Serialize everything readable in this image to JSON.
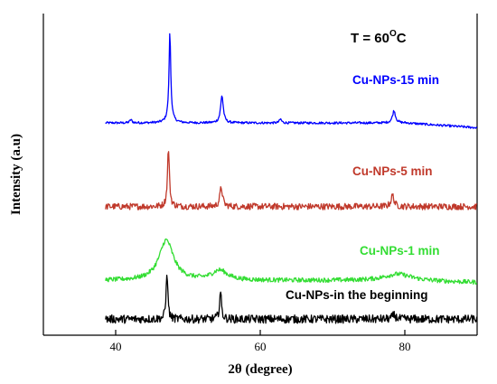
{
  "chart_data": {
    "type": "line",
    "title": "",
    "xlabel": "2θ (degree)",
    "ylabel": "Intensity (a.u)",
    "xlim": [
      30,
      90
    ],
    "ylim": [
      0,
      100
    ],
    "x_ticks": [
      "40",
      "60",
      "80"
    ],
    "x_tick_values": [
      40,
      60,
      80
    ],
    "y_ticks_shown": false,
    "grid": false,
    "annotation": "T = 60°C",
    "annotation_parts": {
      "main": "T = 60",
      "sup": "O",
      "tail": "C"
    },
    "series": [
      {
        "name": "Cu-NPs-15 min",
        "color": "#0000FF",
        "baseline": 66,
        "x_start": 38.6,
        "x_end": 90,
        "tail_drop": 1.5,
        "noise": 0.35,
        "peaks": [
          {
            "x": 42.1,
            "height": 1.0,
            "width": 0.18
          },
          {
            "x": 47.5,
            "height": 2.0,
            "width": 0.45
          },
          {
            "x": 47.5,
            "height": 26.0,
            "width": 0.14
          },
          {
            "x": 54.7,
            "height": 8.5,
            "width": 0.22
          },
          {
            "x": 62.8,
            "height": 1.2,
            "width": 0.18
          },
          {
            "x": 78.5,
            "height": 3.8,
            "width": 0.25
          }
        ]
      },
      {
        "name": "Cu-NPs-5 min",
        "color": "#C0392B",
        "baseline": 40,
        "x_start": 38.6,
        "x_end": 90,
        "tail_drop": 0,
        "noise": 1.0,
        "peaks": [
          {
            "x": 47.3,
            "height": 18.0,
            "width": 0.16
          },
          {
            "x": 54.6,
            "height": 6.0,
            "width": 0.22
          },
          {
            "x": 78.3,
            "height": 3.5,
            "width": 0.25
          }
        ]
      },
      {
        "name": "Cu-NPs-1 min",
        "color": "#33DD33",
        "baseline": 17,
        "x_start": 38.6,
        "x_end": 90,
        "tail_drop": 0.6,
        "noise": 0.7,
        "peaks": [
          {
            "x": 47.0,
            "height": 12.5,
            "width": 1.2
          },
          {
            "x": 54.4,
            "height": 3.0,
            "width": 1.3
          },
          {
            "x": 79.0,
            "height": 2.0,
            "width": 2.2
          }
        ]
      },
      {
        "name": "Cu-NPs-in the beginning",
        "color": "#000000",
        "baseline": 5,
        "x_start": 38.6,
        "x_end": 90,
        "tail_drop": 0,
        "noise": 1.3,
        "peaks": [
          {
            "x": 47.1,
            "height": 15.0,
            "width": 0.14
          },
          {
            "x": 54.5,
            "height": 8.5,
            "width": 0.16
          },
          {
            "x": 78.5,
            "height": 1.2,
            "width": 0.3
          }
        ]
      }
    ]
  }
}
